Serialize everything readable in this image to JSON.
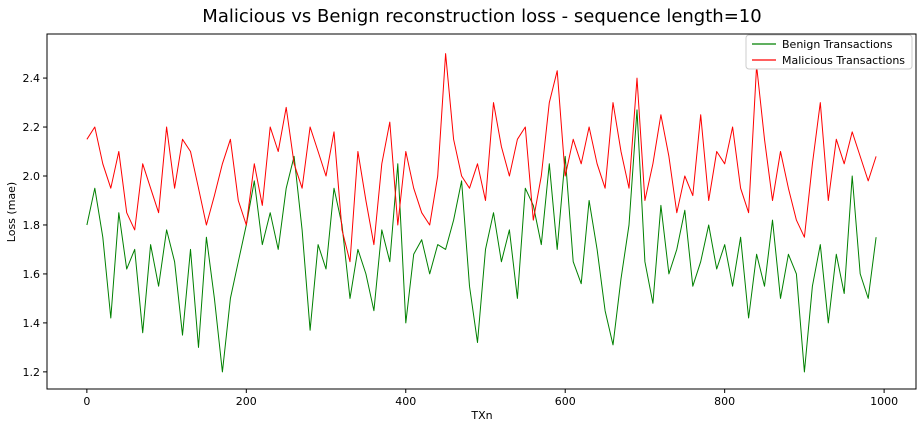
{
  "chart_data": {
    "type": "line",
    "title": "Malicious vs Benign reconstruction loss - sequence length=10",
    "xlabel": "TXn",
    "ylabel": "Loss (mae)",
    "xlim": [
      -50,
      1040
    ],
    "ylim": [
      1.13,
      2.58
    ],
    "xticks": [
      0,
      200,
      400,
      600,
      800,
      1000
    ],
    "yticks": [
      1.2,
      1.4,
      1.6,
      1.8,
      2.0,
      2.2,
      2.4
    ],
    "xtick_labels": [
      "0",
      "200",
      "400",
      "600",
      "800",
      "1000"
    ],
    "ytick_labels": [
      "1.2",
      "1.4",
      "1.6",
      "1.8",
      "2.0",
      "2.2",
      "2.4"
    ],
    "grid": false,
    "legend_position": "top-right",
    "series": [
      {
        "name": "Benign Transactions",
        "color": "#008000",
        "x": [
          0,
          10,
          20,
          30,
          40,
          50,
          60,
          70,
          80,
          90,
          100,
          110,
          120,
          130,
          140,
          150,
          160,
          170,
          180,
          190,
          200,
          210,
          220,
          230,
          240,
          250,
          260,
          270,
          280,
          290,
          300,
          310,
          320,
          330,
          340,
          350,
          360,
          370,
          380,
          390,
          400,
          410,
          420,
          430,
          440,
          450,
          460,
          470,
          480,
          490,
          500,
          510,
          520,
          530,
          540,
          550,
          560,
          570,
          580,
          590,
          600,
          610,
          620,
          630,
          640,
          650,
          660,
          670,
          680,
          690,
          700,
          710,
          720,
          730,
          740,
          750,
          760,
          770,
          780,
          790,
          800,
          810,
          820,
          830,
          840,
          850,
          860,
          870,
          880,
          890,
          900,
          910,
          920,
          930,
          940,
          950,
          960,
          970,
          980,
          990
        ],
        "y": [
          1.8,
          1.95,
          1.75,
          1.42,
          1.85,
          1.62,
          1.7,
          1.36,
          1.72,
          1.55,
          1.78,
          1.65,
          1.35,
          1.7,
          1.3,
          1.75,
          1.5,
          1.2,
          1.5,
          1.65,
          1.8,
          1.98,
          1.72,
          1.85,
          1.7,
          1.95,
          2.08,
          1.78,
          1.37,
          1.72,
          1.62,
          1.95,
          1.8,
          1.5,
          1.7,
          1.6,
          1.45,
          1.78,
          1.65,
          2.05,
          1.4,
          1.68,
          1.74,
          1.6,
          1.72,
          1.7,
          1.82,
          1.98,
          1.55,
          1.32,
          1.7,
          1.85,
          1.65,
          1.78,
          1.5,
          1.95,
          1.88,
          1.72,
          2.05,
          1.7,
          2.08,
          1.65,
          1.56,
          1.9,
          1.7,
          1.45,
          1.31,
          1.58,
          1.8,
          2.27,
          1.65,
          1.48,
          1.88,
          1.6,
          1.7,
          1.86,
          1.55,
          1.65,
          1.8,
          1.62,
          1.72,
          1.55,
          1.75,
          1.42,
          1.68,
          1.55,
          1.82,
          1.5,
          1.68,
          1.6,
          1.2,
          1.55,
          1.72,
          1.4,
          1.68,
          1.52,
          2.0,
          1.6,
          1.5,
          1.75
        ]
      },
      {
        "name": "Malicious Transactions",
        "color": "#ff0000",
        "x": [
          0,
          10,
          20,
          30,
          40,
          50,
          60,
          70,
          80,
          90,
          100,
          110,
          120,
          130,
          140,
          150,
          160,
          170,
          180,
          190,
          200,
          210,
          220,
          230,
          240,
          250,
          260,
          270,
          280,
          290,
          300,
          310,
          320,
          330,
          340,
          350,
          360,
          370,
          380,
          390,
          400,
          410,
          420,
          430,
          440,
          450,
          460,
          470,
          480,
          490,
          500,
          510,
          520,
          530,
          540,
          550,
          560,
          570,
          580,
          590,
          600,
          610,
          620,
          630,
          640,
          650,
          660,
          670,
          680,
          690,
          700,
          710,
          720,
          730,
          740,
          750,
          760,
          770,
          780,
          790,
          800,
          810,
          820,
          830,
          840,
          850,
          860,
          870,
          880,
          890,
          900,
          910,
          920,
          930,
          940,
          950,
          960,
          970,
          980,
          990
        ],
        "y": [
          2.15,
          2.2,
          2.05,
          1.95,
          2.1,
          1.85,
          1.78,
          2.05,
          1.95,
          1.85,
          2.2,
          1.95,
          2.15,
          2.1,
          1.95,
          1.8,
          1.92,
          2.05,
          2.15,
          1.9,
          1.8,
          2.05,
          1.88,
          2.2,
          2.1,
          2.28,
          2.05,
          1.95,
          2.2,
          2.1,
          2.0,
          2.18,
          1.78,
          1.65,
          2.1,
          1.9,
          1.72,
          2.05,
          2.22,
          1.8,
          2.1,
          1.95,
          1.85,
          1.8,
          2.0,
          2.5,
          2.15,
          2.0,
          1.95,
          2.05,
          1.9,
          2.3,
          2.12,
          2.0,
          2.15,
          2.2,
          1.82,
          2.0,
          2.3,
          2.43,
          2.0,
          2.15,
          2.05,
          2.2,
          2.05,
          1.95,
          2.3,
          2.1,
          1.95,
          2.4,
          1.9,
          2.05,
          2.25,
          2.08,
          1.85,
          2.0,
          1.92,
          2.25,
          1.9,
          2.1,
          2.05,
          2.2,
          1.95,
          1.85,
          2.45,
          2.15,
          1.9,
          2.1,
          1.95,
          1.82,
          1.75,
          2.05,
          2.3,
          1.9,
          2.15,
          2.05,
          2.18,
          2.08,
          1.98,
          2.08
        ]
      }
    ]
  }
}
